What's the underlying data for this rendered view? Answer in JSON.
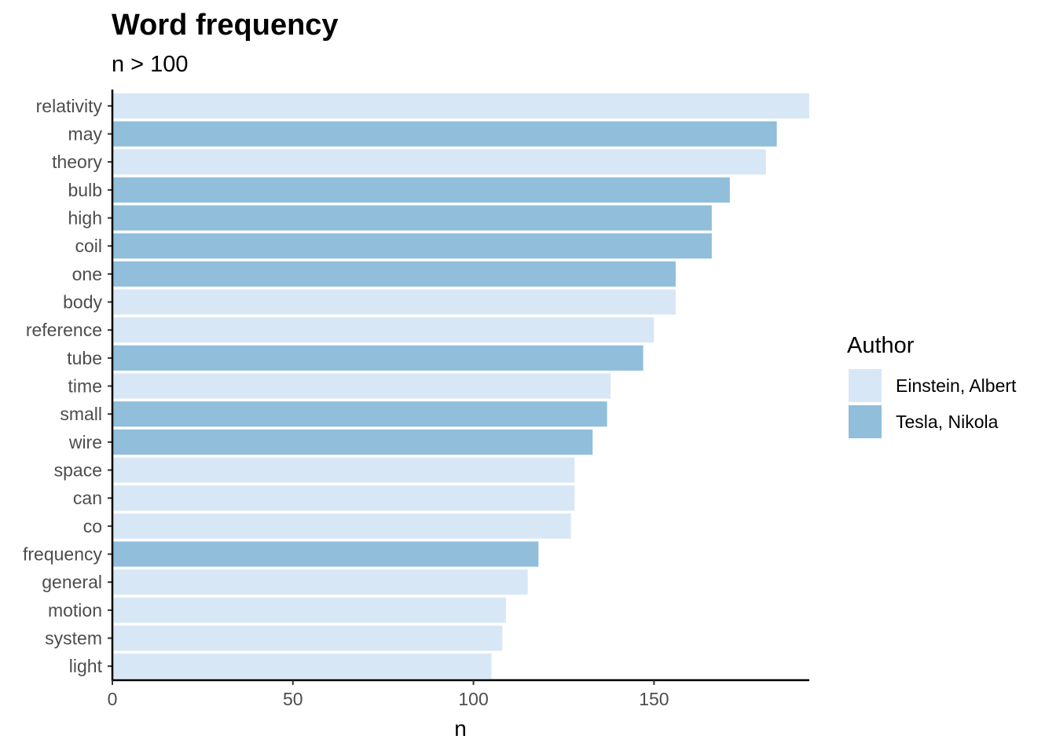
{
  "chart_data": {
    "type": "bar",
    "orientation": "horizontal",
    "title": "Word frequency",
    "subtitle": "n > 100",
    "xlabel": "n",
    "ylabel": "",
    "xlim": [
      0,
      193
    ],
    "x_ticks": [
      0,
      50,
      100,
      150
    ],
    "grid": false,
    "legend": {
      "title": "Author",
      "placement": "right",
      "entries": [
        {
          "name": "Einstein, Albert",
          "color": "#d8e7f5"
        },
        {
          "name": "Tesla, Nikola",
          "color": "#90bedb"
        }
      ]
    },
    "categories": [
      "relativity",
      "may",
      "theory",
      "bulb",
      "high",
      "coil",
      "one",
      "body",
      "reference",
      "tube",
      "time",
      "small",
      "wire",
      "space",
      "can",
      "co",
      "frequency",
      "general",
      "motion",
      "system",
      "light"
    ],
    "values": [
      193,
      184,
      181,
      171,
      166,
      166,
      156,
      156,
      150,
      147,
      138,
      137,
      133,
      128,
      128,
      127,
      118,
      115,
      109,
      108,
      105
    ],
    "authors": [
      "Einstein, Albert",
      "Tesla, Nikola",
      "Einstein, Albert",
      "Tesla, Nikola",
      "Tesla, Nikola",
      "Tesla, Nikola",
      "Tesla, Nikola",
      "Einstein, Albert",
      "Einstein, Albert",
      "Tesla, Nikola",
      "Einstein, Albert",
      "Tesla, Nikola",
      "Tesla, Nikola",
      "Einstein, Albert",
      "Einstein, Albert",
      "Einstein, Albert",
      "Tesla, Nikola",
      "Einstein, Albert",
      "Einstein, Albert",
      "Einstein, Albert",
      "Einstein, Albert"
    ]
  }
}
